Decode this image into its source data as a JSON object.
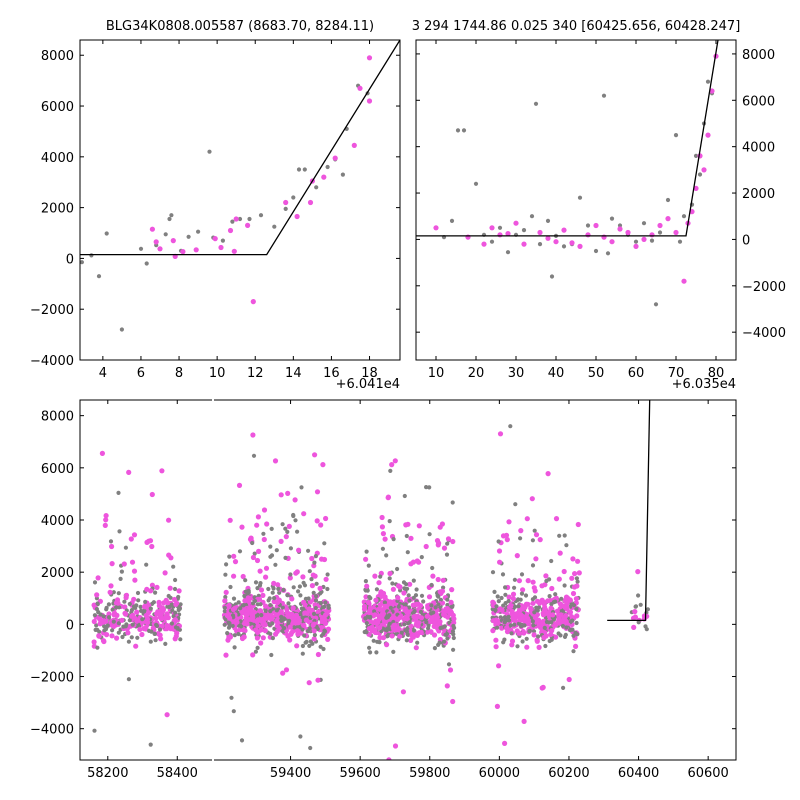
{
  "titles": {
    "left": "BLG34K0808.005587 (8683.70, 8284.11)",
    "right": "3 294 1744.86 0.025 340 [60425.656, 60428.247]"
  },
  "offsets": {
    "left": "+6.041e4",
    "right": "+6.035e4"
  },
  "colors": {
    "gray": "#808080",
    "magenta": "#ee55dd",
    "model": "#000000"
  },
  "chart_data": [
    {
      "type": "scatter",
      "name": "zoom-left",
      "title": "BLG34K0808.005587 (8683.70, 8284.11)",
      "x_offset_label": "+6.041e4",
      "xlim": [
        2.8,
        19.6
      ],
      "ylim": [
        -4000,
        8600
      ],
      "xticks": [
        4,
        6,
        8,
        10,
        12,
        14,
        16,
        18
      ],
      "yticks": [
        -4000,
        -2000,
        0,
        2000,
        4000,
        6000,
        8000
      ],
      "grid": false,
      "series": [
        {
          "color": "gray",
          "points": [
            [
              2.9,
              -150
            ],
            [
              3.4,
              120
            ],
            [
              3.8,
              -700
            ],
            [
              4.2,
              980
            ],
            [
              5.0,
              -2800
            ],
            [
              6.0,
              380
            ],
            [
              6.3,
              -200
            ],
            [
              6.8,
              520
            ],
            [
              7.3,
              950
            ],
            [
              7.5,
              1550
            ],
            [
              7.6,
              1700
            ],
            [
              8.1,
              300
            ],
            [
              8.5,
              850
            ],
            [
              9.0,
              1050
            ],
            [
              9.6,
              4200
            ],
            [
              9.8,
              820
            ],
            [
              10.3,
              700
            ],
            [
              10.8,
              1450
            ],
            [
              11.2,
              1550
            ],
            [
              11.7,
              1550
            ],
            [
              12.3,
              1700
            ],
            [
              13.0,
              1250
            ],
            [
              13.6,
              1950
            ],
            [
              14.0,
              2400
            ],
            [
              14.3,
              3500
            ],
            [
              14.6,
              3500
            ],
            [
              15.2,
              2800
            ],
            [
              15.8,
              3600
            ],
            [
              16.2,
              3900
            ],
            [
              16.6,
              3300
            ],
            [
              16.8,
              5100
            ],
            [
              17.4,
              6800
            ],
            [
              17.9,
              6500
            ]
          ]
        },
        {
          "color": "magenta",
          "points": [
            [
              6.6,
              1150
            ],
            [
              6.8,
              650
            ],
            [
              7.0,
              380
            ],
            [
              7.7,
              700
            ],
            [
              7.8,
              80
            ],
            [
              8.2,
              270
            ],
            [
              8.9,
              340
            ],
            [
              9.9,
              780
            ],
            [
              10.2,
              430
            ],
            [
              10.7,
              1100
            ],
            [
              10.9,
              280
            ],
            [
              11.0,
              1550
            ],
            [
              11.6,
              1300
            ],
            [
              11.9,
              -1700
            ],
            [
              13.6,
              2200
            ],
            [
              14.2,
              1650
            ],
            [
              14.9,
              2200
            ],
            [
              15.0,
              3050
            ],
            [
              15.6,
              3200
            ],
            [
              16.2,
              3950
            ],
            [
              17.2,
              4450
            ],
            [
              17.5,
              6700
            ],
            [
              18.0,
              7900
            ],
            [
              18.0,
              6200
            ]
          ]
        }
      ],
      "model": [
        [
          2.8,
          150
        ],
        [
          12.6,
          150
        ],
        [
          19.6,
          8600
        ]
      ]
    },
    {
      "type": "scatter",
      "name": "zoom-right",
      "title": "3 294 1744.86 0.025 340 [60425.656, 60428.247]",
      "x_offset_label": "+6.035e4",
      "xlim": [
        5,
        85
      ],
      "ylim": [
        -5200,
        8600
      ],
      "xticks": [
        10,
        20,
        30,
        40,
        50,
        60,
        70,
        80
      ],
      "yticks": [
        -4000,
        -2000,
        0,
        2000,
        4000,
        6000,
        8000
      ],
      "y_axis_side": "right",
      "grid": false,
      "series": [
        {
          "color": "gray",
          "points": [
            [
              12,
              100
            ],
            [
              14,
              800
            ],
            [
              15.5,
              4700
            ],
            [
              17,
              4700
            ],
            [
              20,
              2400
            ],
            [
              22,
              200
            ],
            [
              24,
              -100
            ],
            [
              26,
              500
            ],
            [
              28,
              -550
            ],
            [
              30,
              200
            ],
            [
              32,
              400
            ],
            [
              34,
              1000
            ],
            [
              35,
              5850
            ],
            [
              36,
              -200
            ],
            [
              38,
              800
            ],
            [
              39,
              -1600
            ],
            [
              40,
              150
            ],
            [
              42,
              -300
            ],
            [
              44,
              -200
            ],
            [
              46,
              1800
            ],
            [
              48,
              600
            ],
            [
              50,
              -500
            ],
            [
              52,
              6200
            ],
            [
              53,
              -600
            ],
            [
              54,
              900
            ],
            [
              56,
              600
            ],
            [
              58,
              200
            ],
            [
              60,
              -100
            ],
            [
              62,
              700
            ],
            [
              64,
              -50
            ],
            [
              65,
              -2800
            ],
            [
              66,
              300
            ],
            [
              68,
              1700
            ],
            [
              70,
              4500
            ],
            [
              71,
              -100
            ],
            [
              72,
              1000
            ],
            [
              73,
              700
            ],
            [
              74,
              1500
            ],
            [
              75,
              3600
            ],
            [
              76,
              2800
            ],
            [
              77,
              5000
            ],
            [
              78,
              6800
            ],
            [
              79,
              6300
            ]
          ]
        },
        {
          "color": "magenta",
          "points": [
            [
              10,
              500
            ],
            [
              18,
              100
            ],
            [
              22,
              -200
            ],
            [
              24,
              500
            ],
            [
              26,
              200
            ],
            [
              28,
              250
            ],
            [
              30,
              700
            ],
            [
              32,
              -200
            ],
            [
              36,
              300
            ],
            [
              38,
              50
            ],
            [
              40,
              -100
            ],
            [
              42,
              400
            ],
            [
              44,
              -150
            ],
            [
              46,
              -300
            ],
            [
              48,
              200
            ],
            [
              50,
              600
            ],
            [
              52,
              100
            ],
            [
              54,
              -100
            ],
            [
              56,
              450
            ],
            [
              58,
              300
            ],
            [
              60,
              -300
            ],
            [
              62,
              0
            ],
            [
              64,
              200
            ],
            [
              66,
              600
            ],
            [
              68,
              900
            ],
            [
              70,
              300
            ],
            [
              72,
              -1800
            ],
            [
              73,
              700
            ],
            [
              74,
              1200
            ],
            [
              75,
              2200
            ],
            [
              76,
              3600
            ],
            [
              77,
              3000
            ],
            [
              78,
              4500
            ],
            [
              79,
              6400
            ],
            [
              80,
              7900
            ]
          ]
        }
      ],
      "model": [
        [
          5,
          150
        ],
        [
          72.5,
          150
        ],
        [
          80.5,
          8600
        ]
      ]
    },
    {
      "type": "scatter",
      "name": "full-lightcurve",
      "xlim": [
        58120,
        60680
      ],
      "ylim": [
        -5200,
        8600
      ],
      "xticks": [
        58200,
        58400,
        59400,
        59600,
        59800,
        60000,
        60200,
        60400,
        60600
      ],
      "yticks": [
        -4000,
        -2000,
        0,
        2000,
        4000,
        6000,
        8000
      ],
      "broken_x": [
        [
          58120,
          58500
        ],
        [
          59180,
          60680
        ]
      ],
      "grid": false,
      "seasons": [
        [
          58160,
          58410,
          14
        ],
        [
          59210,
          59510,
          25
        ],
        [
          59610,
          59870,
          25
        ],
        [
          59980,
          60230,
          20
        ],
        [
          60380,
          60430,
          4
        ]
      ],
      "model": [
        [
          60310,
          150
        ],
        [
          60420,
          150
        ],
        [
          60432,
          8600
        ]
      ]
    }
  ]
}
